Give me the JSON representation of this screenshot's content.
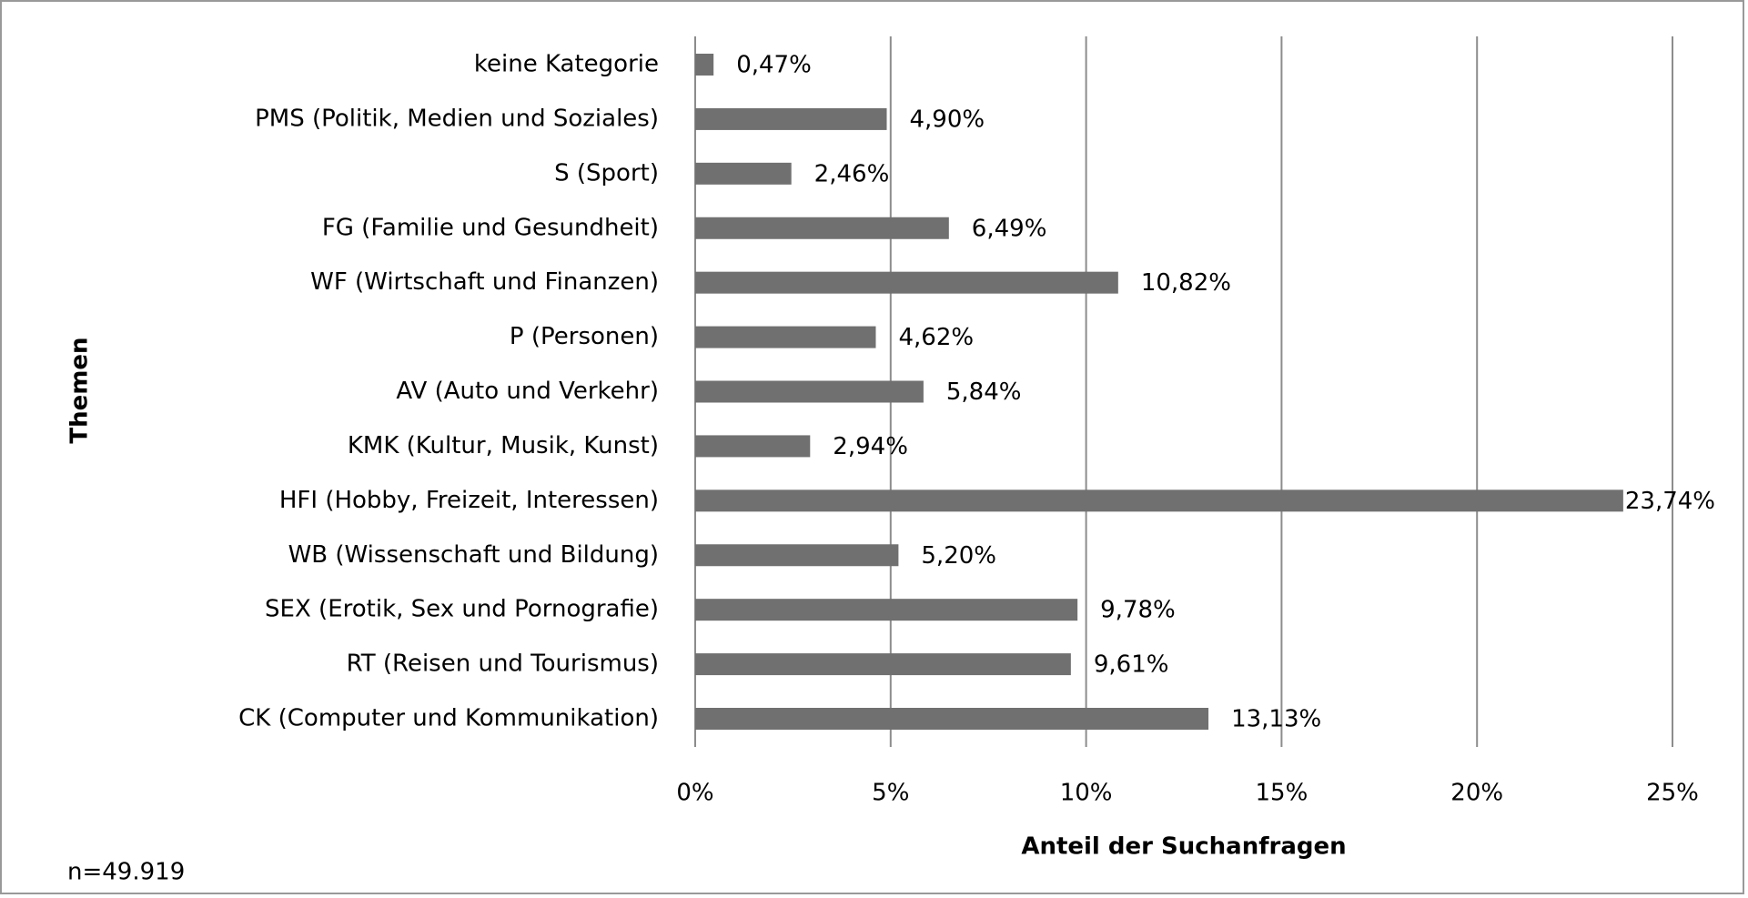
{
  "chart_data": {
    "type": "bar",
    "orientation": "horizontal",
    "x_label": "Anteil der Suchanfragen",
    "y_label": "Themen",
    "note": "n=49.919",
    "categories": [
      "keine Kategorie",
      "PMS (Politik, Medien und Soziales)",
      "S (Sport)",
      "FG (Familie und Gesundheit)",
      "WF (Wirtschaft und Finanzen)",
      "P (Personen)",
      "AV (Auto und Verkehr)",
      "KMK (Kultur, Musik, Kunst)",
      "HFI (Hobby, Freizeit, Interessen)",
      "WB (Wissenschaft und Bildung)",
      "SEX (Erotik, Sex und Pornografie)",
      "RT (Reisen und Tourismus)",
      "CK (Computer und Kommunikation)"
    ],
    "values": [
      0.47,
      4.9,
      2.46,
      6.49,
      10.82,
      4.62,
      5.84,
      2.94,
      23.74,
      5.2,
      9.78,
      9.61,
      13.13
    ],
    "value_labels": [
      "0,47%",
      "4,90%",
      "2,46%",
      "6,49%",
      "10,82%",
      "4,62%",
      "5,84%",
      "2,94%",
      "23,74%",
      "5,20%",
      "9,78%",
      "9,61%",
      "13,13%"
    ],
    "color": "#707070",
    "xlim": [
      0,
      25
    ],
    "xticks": [
      {
        "value": 0,
        "label": "0%"
      },
      {
        "value": 5,
        "label": "5%"
      },
      {
        "value": 10,
        "label": "10%"
      },
      {
        "value": 15,
        "label": "15%"
      },
      {
        "value": 20,
        "label": "20%"
      },
      {
        "value": 25,
        "label": "25%"
      }
    ],
    "grid": true
  }
}
